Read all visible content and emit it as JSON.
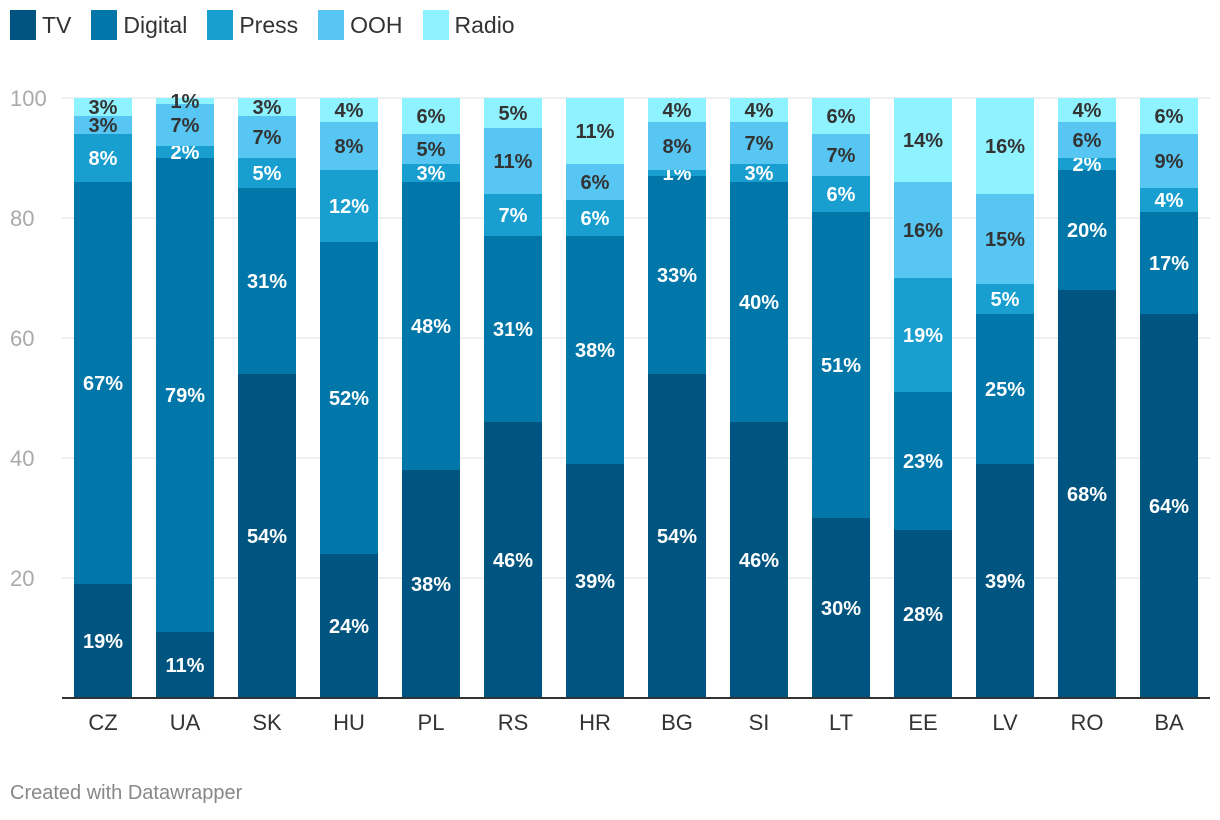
{
  "chart_data": {
    "type": "bar",
    "stacked": true,
    "categories": [
      "CZ",
      "UA",
      "SK",
      "HU",
      "PL",
      "RS",
      "HR",
      "BG",
      "SI",
      "LT",
      "EE",
      "LV",
      "RO",
      "BA"
    ],
    "series": [
      {
        "name": "TV",
        "color": "#005580",
        "values": [
          19,
          11,
          54,
          24,
          38,
          46,
          39,
          54,
          46,
          30,
          28,
          39,
          68,
          64
        ]
      },
      {
        "name": "Digital",
        "color": "#0077a8",
        "values": [
          67,
          79,
          31,
          52,
          48,
          31,
          38,
          33,
          40,
          51,
          23,
          25,
          20,
          17
        ]
      },
      {
        "name": "Press",
        "color": "#189fcf",
        "values": [
          8,
          2,
          5,
          12,
          3,
          7,
          6,
          1,
          3,
          6,
          19,
          5,
          2,
          4
        ]
      },
      {
        "name": "OOH",
        "color": "#57c6f2",
        "values": [
          3,
          7,
          7,
          8,
          5,
          11,
          6,
          8,
          7,
          7,
          16,
          15,
          6,
          9
        ]
      },
      {
        "name": "Radio",
        "color": "#8ff2ff",
        "values": [
          3,
          1,
          3,
          4,
          6,
          5,
          11,
          4,
          4,
          6,
          14,
          16,
          4,
          6
        ]
      }
    ],
    "ylim": [
      0,
      100
    ],
    "yticks": [
      20,
      40,
      60,
      80,
      100
    ],
    "value_suffix": "%",
    "grid": true,
    "legend_position": "top-left"
  },
  "footer": "Created with Datawrapper"
}
